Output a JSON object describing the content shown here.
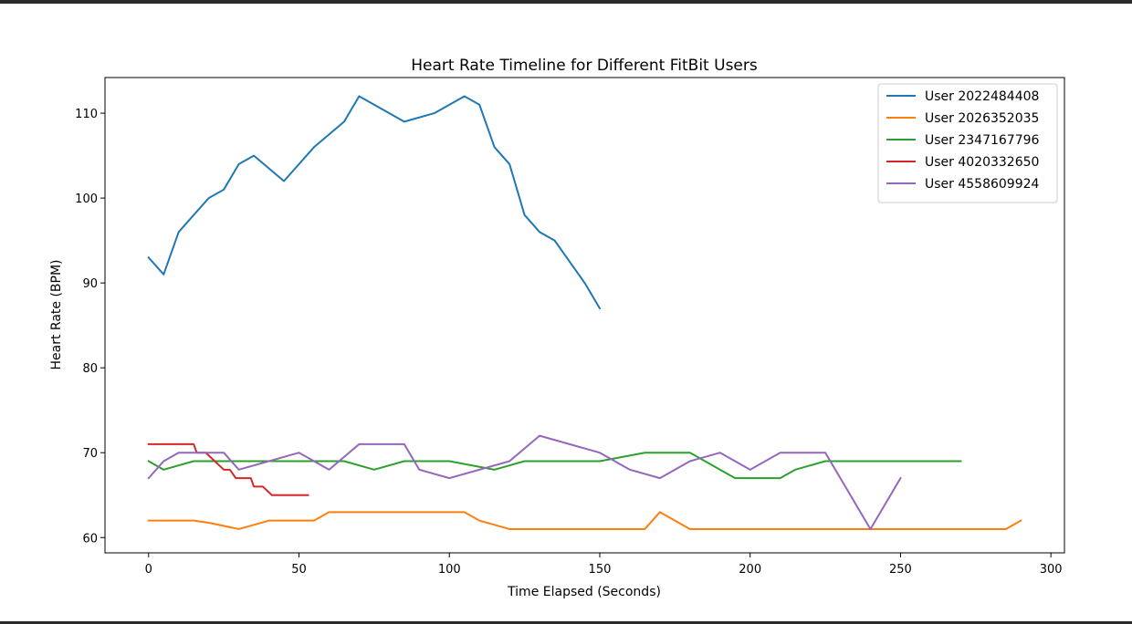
{
  "chart_data": {
    "type": "line",
    "title": "Heart Rate Timeline for Different FitBit Users",
    "xlabel": "Time Elapsed (Seconds)",
    "ylabel": "Heart Rate (BPM)",
    "xlim": [
      -14.5,
      304.5
    ],
    "ylim": [
      58.2,
      114.2
    ],
    "xticks": [
      0,
      50,
      100,
      150,
      200,
      250,
      300
    ],
    "yticks": [
      60,
      70,
      80,
      90,
      100,
      110
    ],
    "grid": false,
    "legend_position": "top-right",
    "series": [
      {
        "name": "User 2022484408",
        "color": "#1f77b4",
        "points": [
          [
            0,
            93
          ],
          [
            5,
            91
          ],
          [
            10,
            96
          ],
          [
            15,
            98
          ],
          [
            20,
            100
          ],
          [
            25,
            101
          ],
          [
            30,
            104
          ],
          [
            35,
            105
          ],
          [
            45,
            102
          ],
          [
            55,
            106
          ],
          [
            60,
            107.5
          ],
          [
            65,
            109
          ],
          [
            70,
            112
          ],
          [
            75,
            111
          ],
          [
            85,
            109
          ],
          [
            95,
            110
          ],
          [
            105,
            112
          ],
          [
            110,
            111
          ],
          [
            115,
            106
          ],
          [
            120,
            104
          ],
          [
            125,
            98
          ],
          [
            130,
            96
          ],
          [
            135,
            95
          ],
          [
            145,
            90
          ],
          [
            150,
            87
          ]
        ]
      },
      {
        "name": "User 2026352035",
        "color": "#ff7f0e",
        "points": [
          [
            0,
            62
          ],
          [
            5,
            62
          ],
          [
            15,
            62
          ],
          [
            20,
            61.75
          ],
          [
            30,
            61
          ],
          [
            40,
            62
          ],
          [
            45,
            62
          ],
          [
            55,
            62
          ],
          [
            60,
            63
          ],
          [
            105,
            63
          ],
          [
            110,
            62
          ],
          [
            120,
            61
          ],
          [
            165,
            61
          ],
          [
            170,
            63
          ],
          [
            180,
            61
          ],
          [
            285,
            61
          ],
          [
            290,
            62
          ]
        ]
      },
      {
        "name": "User 2347167796",
        "color": "#2ca02c",
        "points": [
          [
            0,
            69
          ],
          [
            5,
            68
          ],
          [
            15,
            69
          ],
          [
            20,
            69
          ],
          [
            65,
            69
          ],
          [
            75,
            68
          ],
          [
            85,
            69
          ],
          [
            100,
            69
          ],
          [
            115,
            68
          ],
          [
            125,
            69
          ],
          [
            150,
            69
          ],
          [
            165,
            70
          ],
          [
            180,
            70
          ],
          [
            195,
            67
          ],
          [
            210,
            67
          ],
          [
            215,
            68
          ],
          [
            225,
            69
          ],
          [
            270,
            69
          ]
        ]
      },
      {
        "name": "User 4020332650",
        "color": "#d62728",
        "points": [
          [
            0,
            71
          ],
          [
            15,
            71
          ],
          [
            16,
            70
          ],
          [
            19,
            70
          ],
          [
            22,
            69
          ],
          [
            25,
            68
          ],
          [
            27,
            68
          ],
          [
            29,
            67
          ],
          [
            34,
            67
          ],
          [
            35,
            66
          ],
          [
            38,
            66
          ],
          [
            41,
            65
          ],
          [
            53,
            65
          ]
        ]
      },
      {
        "name": "User 4558609924",
        "color": "#9467bd",
        "points": [
          [
            0,
            67
          ],
          [
            5,
            69
          ],
          [
            10,
            70
          ],
          [
            25,
            70
          ],
          [
            30,
            68
          ],
          [
            50,
            70
          ],
          [
            55,
            69
          ],
          [
            60,
            68
          ],
          [
            70,
            71
          ],
          [
            85,
            71
          ],
          [
            90,
            68
          ],
          [
            100,
            67
          ],
          [
            120,
            69
          ],
          [
            130,
            72
          ],
          [
            150,
            70
          ],
          [
            160,
            68
          ],
          [
            170,
            67
          ],
          [
            180,
            69
          ],
          [
            190,
            70
          ],
          [
            200,
            68
          ],
          [
            210,
            70
          ],
          [
            225,
            70
          ],
          [
            240,
            61
          ],
          [
            250,
            67
          ]
        ]
      }
    ]
  }
}
